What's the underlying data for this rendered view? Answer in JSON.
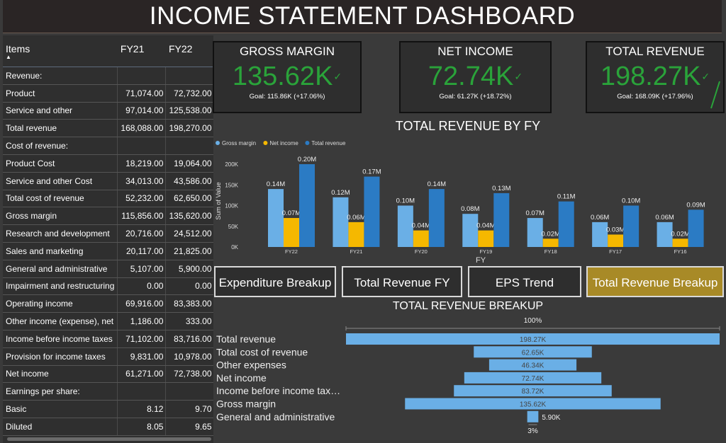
{
  "title": "INCOME STATEMENT DASHBOARD",
  "table": {
    "headers": [
      "Items",
      "FY21",
      "FY22"
    ],
    "rows": [
      [
        "Revenue:",
        "",
        ""
      ],
      [
        "Product",
        "71,074.00",
        "72,732.00"
      ],
      [
        "Service and other",
        "97,014.00",
        "125,538.00"
      ],
      [
        "Total revenue",
        "168,088.00",
        "198,270.00"
      ],
      [
        "Cost of revenue:",
        "",
        ""
      ],
      [
        "Product Cost",
        "18,219.00",
        "19,064.00"
      ],
      [
        "Service and other Cost",
        "34,013.00",
        "43,586.00"
      ],
      [
        "Total cost of revenue",
        "52,232.00",
        "62,650.00"
      ],
      [
        "Gross margin",
        "115,856.00",
        "135,620.00"
      ],
      [
        "Research and development",
        "20,716.00",
        "24,512.00"
      ],
      [
        "Sales and marketing",
        "20,117.00",
        "21,825.00"
      ],
      [
        "General and administrative",
        "5,107.00",
        "5,900.00"
      ],
      [
        "Impairment and restructuring",
        "0.00",
        "0.00"
      ],
      [
        "Operating income",
        "69,916.00",
        "83,383.00"
      ],
      [
        "Other income (expense), net",
        "1,186.00",
        "333.00"
      ],
      [
        "Income before income taxes",
        "71,102.00",
        "83,716.00"
      ],
      [
        "Provision for income taxes",
        "9,831.00",
        "10,978.00"
      ],
      [
        "Net income",
        "61,271.00",
        "72,738.00"
      ],
      [
        "Earnings per share:",
        "",
        ""
      ],
      [
        "Basic",
        "8.12",
        "9.70"
      ],
      [
        "Diluted",
        "8.05",
        "9.65"
      ]
    ]
  },
  "kpis": {
    "gross_margin": {
      "title": "GROSS MARGIN",
      "value": "135.62K",
      "goal": "Goal: 115.86K (+17.06%)"
    },
    "net_income": {
      "title": "NET INCOME",
      "value": "72.74K",
      "goal": "Goal: 61.27K (+18.72%)"
    },
    "total_revenue": {
      "title": "TOTAL REVENUE",
      "value": "198.27K",
      "goal": "Goal: 168.09K (+17.96%)"
    }
  },
  "chart_data": [
    {
      "type": "bar",
      "title": "TOTAL REVENUE BY FY",
      "xlabel": "FY",
      "ylabel": "Sum of Value",
      "categories": [
        "FY22",
        "FY21",
        "FY20",
        "FY19",
        "FY18",
        "FY17",
        "FY16"
      ],
      "series": [
        {
          "name": "Gross margin",
          "color": "#6aafe6",
          "values": [
            0.14,
            0.12,
            0.1,
            0.08,
            0.07,
            0.06,
            0.06
          ],
          "labels": [
            "0.14M",
            "0.12M",
            "0.10M",
            "0.08M",
            "0.07M",
            "0.06M",
            "0.06M"
          ]
        },
        {
          "name": "Net income",
          "color": "#f5b800",
          "values": [
            0.07,
            0.06,
            0.04,
            0.04,
            0.02,
            0.03,
            0.02
          ],
          "labels": [
            "0.07M",
            "0.06M",
            "0.04M",
            "0.04M",
            "0.02M",
            "0.03M",
            "0.02M"
          ]
        },
        {
          "name": "Total revenue",
          "color": "#2b7bc4",
          "values": [
            0.2,
            0.17,
            0.14,
            0.13,
            0.11,
            0.1,
            0.09
          ],
          "labels": [
            "0.20M",
            "0.17M",
            "0.14M",
            "0.13M",
            "0.11M",
            "0.10M",
            "0.09M"
          ]
        }
      ],
      "yticks": [
        "0K",
        "50K",
        "100K",
        "150K",
        "200K"
      ],
      "ylim": [
        0,
        0.2
      ],
      "legend": "top-left"
    },
    {
      "type": "funnel",
      "title": "TOTAL REVENUE BREAKUP",
      "top_label": "100%",
      "bottom_label": "3%",
      "color": "#6aafe6",
      "categories": [
        "Total revenue",
        "Total cost of revenue",
        "Other expenses",
        "Net income",
        "Income before income tax…",
        "Gross margin",
        "General and administrative"
      ],
      "values": [
        198.27,
        62.65,
        46.34,
        72.74,
        83.72,
        135.62,
        5.9
      ],
      "labels": [
        "198.27K",
        "62.65K",
        "46.34K",
        "72.74K",
        "83.72K",
        "135.62K",
        "5.90K"
      ]
    }
  ],
  "buttons": {
    "expenditure": "Expenditure Breakup",
    "total_revenue_fy": "Total Revenue FY",
    "eps": "EPS Trend",
    "total_revenue_breakup": "Total Revenue Breakup"
  },
  "colors": {
    "accent_green": "#2aa33a",
    "active_button": "#a88a27",
    "background": "#3a3a3a"
  }
}
